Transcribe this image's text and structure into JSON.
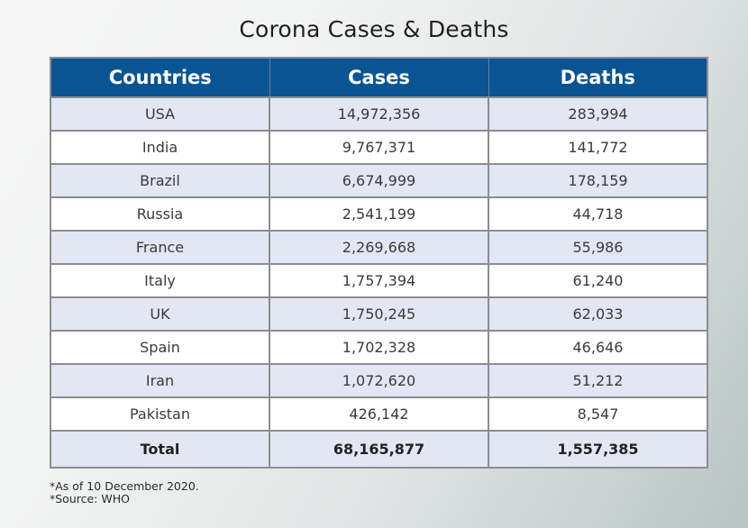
{
  "title": "Corona Cases & Deaths",
  "table": {
    "headers": [
      "Countries",
      "Cases",
      "Deaths"
    ],
    "rows": [
      {
        "country": "USA",
        "cases": "14,972,356",
        "deaths": "283,994"
      },
      {
        "country": "India",
        "cases": "9,767,371",
        "deaths": "141,772"
      },
      {
        "country": "Brazil",
        "cases": "6,674,999",
        "deaths": "178,159"
      },
      {
        "country": "Russia",
        "cases": "2,541,199",
        "deaths": "44,718"
      },
      {
        "country": "France",
        "cases": "2,269,668",
        "deaths": "55,986"
      },
      {
        "country": "Italy",
        "cases": "1,757,394",
        "deaths": "61,240"
      },
      {
        "country": "UK",
        "cases": "1,750,245",
        "deaths": "62,033"
      },
      {
        "country": "Spain",
        "cases": "1,702,328",
        "deaths": "46,646"
      },
      {
        "country": "Iran",
        "cases": "1,072,620",
        "deaths": "51,212"
      },
      {
        "country": "Pakistan",
        "cases": "426,142",
        "deaths": "8,547"
      }
    ],
    "total": {
      "label": "Total",
      "cases": "68,165,877",
      "deaths": "1,557,385"
    }
  },
  "notes": [
    "*As of 10 December 2020.",
    "*Source: WHO"
  ],
  "colors": {
    "header_bg": "#0b5494",
    "stripe": "#e3e6f3"
  }
}
